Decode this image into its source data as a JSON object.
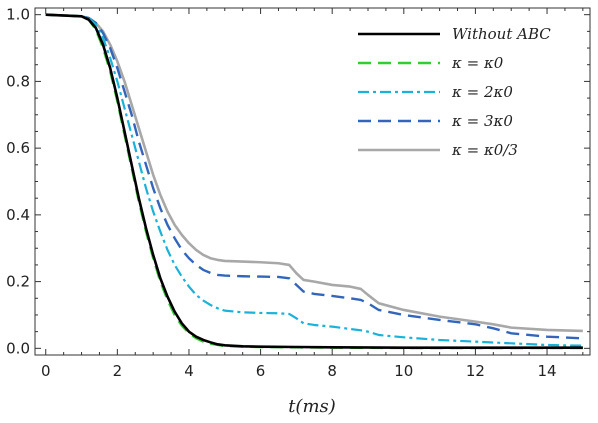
{
  "chart_data": {
    "type": "line",
    "title": "",
    "xlabel": "t(ms)",
    "ylabel": "",
    "xlim": [
      -0.3,
      15.2
    ],
    "ylim": [
      -0.02,
      1.02
    ],
    "x_ticks": [
      0,
      2,
      4,
      6,
      8,
      10,
      12,
      14
    ],
    "y_ticks": [
      0.0,
      0.2,
      0.4,
      0.6,
      0.8,
      1.0
    ],
    "x_tick_labels": [
      "0",
      "2",
      "4",
      "6",
      "8",
      "10",
      "12",
      "14"
    ],
    "y_tick_labels": [
      "0.0",
      "0.2",
      "0.4",
      "0.6",
      "0.8",
      "1.0"
    ],
    "grid": false,
    "legend_position": "top-right",
    "series": [
      {
        "name": "Without ABC",
        "color": "#000000",
        "dash": "solid",
        "x": [
          0,
          1.0,
          1.2,
          1.4,
          1.6,
          1.8,
          2.0,
          2.2,
          2.4,
          2.6,
          2.8,
          3.0,
          3.2,
          3.4,
          3.6,
          3.8,
          4.0,
          4.2,
          4.4,
          4.6,
          4.8,
          5.0,
          5.5,
          6.0,
          7.0,
          8.0,
          10.0,
          12.0,
          15.0
        ],
        "y": [
          1.0,
          0.995,
          0.985,
          0.96,
          0.91,
          0.84,
          0.75,
          0.65,
          0.55,
          0.45,
          0.36,
          0.28,
          0.21,
          0.155,
          0.11,
          0.075,
          0.05,
          0.035,
          0.025,
          0.018,
          0.012,
          0.009,
          0.006,
          0.005,
          0.004,
          0.003,
          0.002,
          0.002,
          0.002
        ]
      },
      {
        "name": "κ = κ0",
        "color": "#33cc33",
        "dash": "long-dash",
        "x": [
          0,
          1.0,
          1.2,
          1.4,
          1.6,
          1.8,
          2.0,
          2.2,
          2.4,
          2.6,
          2.8,
          3.0,
          3.2,
          3.4,
          3.6,
          3.8,
          4.0,
          4.2,
          4.4,
          4.6,
          4.8,
          5.0,
          5.5,
          6.0,
          7.0,
          8.0,
          10.0,
          12.0,
          15.0
        ],
        "y": [
          1.0,
          0.995,
          0.985,
          0.955,
          0.9,
          0.83,
          0.74,
          0.64,
          0.54,
          0.44,
          0.35,
          0.27,
          0.2,
          0.145,
          0.1,
          0.068,
          0.045,
          0.03,
          0.02,
          0.014,
          0.01,
          0.007,
          0.005,
          0.004,
          0.003,
          0.002,
          0.001,
          0.001,
          0.001
        ]
      },
      {
        "name": "κ = 2κ0",
        "color": "#1ab2d9",
        "dash": "dash-dot",
        "x": [
          0,
          1.0,
          1.2,
          1.4,
          1.6,
          1.8,
          2.0,
          2.2,
          2.4,
          2.6,
          2.8,
          3.0,
          3.2,
          3.4,
          3.6,
          3.8,
          4.0,
          4.2,
          4.4,
          4.6,
          4.8,
          5.0,
          5.5,
          6.0,
          6.5,
          6.8,
          7.0,
          7.2,
          7.5,
          8.0,
          8.5,
          8.8,
          9.0,
          9.3,
          10.0,
          11.0,
          12.0,
          13.0,
          14.0,
          15.0
        ],
        "y": [
          1.0,
          0.995,
          0.99,
          0.97,
          0.93,
          0.87,
          0.8,
          0.72,
          0.64,
          0.56,
          0.48,
          0.41,
          0.35,
          0.295,
          0.25,
          0.215,
          0.185,
          0.16,
          0.143,
          0.13,
          0.12,
          0.113,
          0.108,
          0.106,
          0.105,
          0.103,
          0.09,
          0.075,
          0.07,
          0.065,
          0.058,
          0.054,
          0.05,
          0.04,
          0.033,
          0.025,
          0.02,
          0.015,
          0.01,
          0.008
        ]
      },
      {
        "name": "κ = 3κ0",
        "color": "#3366bb",
        "dash": "long-dash",
        "x": [
          0,
          1.0,
          1.2,
          1.4,
          1.6,
          1.8,
          2.0,
          2.2,
          2.4,
          2.6,
          2.8,
          3.0,
          3.2,
          3.4,
          3.6,
          3.8,
          4.0,
          4.2,
          4.4,
          4.6,
          4.8,
          5.0,
          5.5,
          6.0,
          6.5,
          6.8,
          7.0,
          7.2,
          7.5,
          8.0,
          8.5,
          8.8,
          9.0,
          9.3,
          10.0,
          11.0,
          12.0,
          12.5,
          13.0,
          14.0,
          15.0
        ],
        "y": [
          1.0,
          0.995,
          0.99,
          0.975,
          0.945,
          0.9,
          0.84,
          0.77,
          0.7,
          0.62,
          0.55,
          0.48,
          0.42,
          0.37,
          0.33,
          0.295,
          0.27,
          0.25,
          0.235,
          0.226,
          0.22,
          0.218,
          0.216,
          0.215,
          0.214,
          0.21,
          0.19,
          0.17,
          0.163,
          0.157,
          0.15,
          0.145,
          0.135,
          0.115,
          0.1,
          0.085,
          0.072,
          0.06,
          0.045,
          0.035,
          0.03
        ]
      },
      {
        "name": "κ = κ0/3",
        "color": "#a8a8a8",
        "dash": "solid",
        "x": [
          0,
          1.0,
          1.2,
          1.4,
          1.6,
          1.8,
          2.0,
          2.2,
          2.4,
          2.6,
          2.8,
          3.0,
          3.2,
          3.4,
          3.6,
          3.8,
          4.0,
          4.2,
          4.4,
          4.6,
          4.8,
          5.0,
          5.5,
          6.0,
          6.5,
          6.8,
          7.0,
          7.2,
          7.5,
          8.0,
          8.5,
          8.8,
          9.0,
          9.3,
          10.0,
          11.0,
          12.0,
          12.5,
          13.0,
          14.0,
          15.0
        ],
        "y": [
          1.0,
          0.995,
          0.99,
          0.975,
          0.95,
          0.91,
          0.86,
          0.8,
          0.73,
          0.66,
          0.59,
          0.52,
          0.46,
          0.41,
          0.37,
          0.34,
          0.315,
          0.295,
          0.28,
          0.27,
          0.265,
          0.262,
          0.26,
          0.258,
          0.255,
          0.25,
          0.225,
          0.205,
          0.2,
          0.19,
          0.185,
          0.178,
          0.16,
          0.135,
          0.115,
          0.095,
          0.08,
          0.072,
          0.062,
          0.055,
          0.052
        ]
      }
    ]
  },
  "legend": {
    "items": [
      {
        "label": "Without ABC",
        "color": "#000000",
        "dash": "solid"
      },
      {
        "label": "κ = κ0",
        "color": "#33cc33",
        "dash": "long-dash"
      },
      {
        "label": "κ = 2κ0",
        "color": "#1ab2d9",
        "dash": "dash-dot"
      },
      {
        "label": "κ = 3κ0",
        "color": "#3366bb",
        "dash": "long-dash"
      },
      {
        "label": "κ = κ0/3",
        "color": "#a8a8a8",
        "dash": "solid"
      }
    ]
  }
}
